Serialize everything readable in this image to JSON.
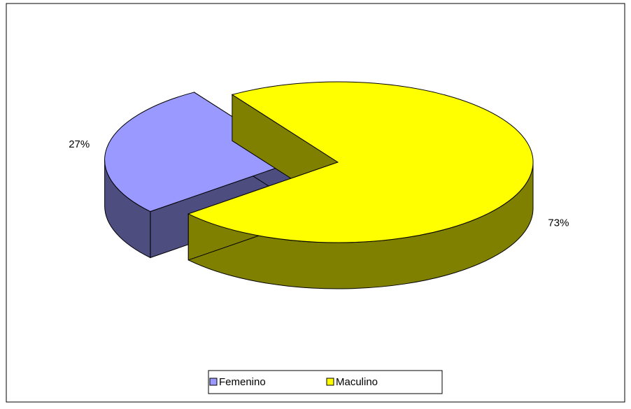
{
  "chart_data": {
    "type": "pie",
    "categories": [
      "Femenino",
      "Maculino"
    ],
    "values": [
      27,
      73
    ],
    "value_labels": [
      "27%",
      "73%"
    ],
    "colors": [
      "#9999ff",
      "#ffff00"
    ],
    "legend": "bottom"
  }
}
